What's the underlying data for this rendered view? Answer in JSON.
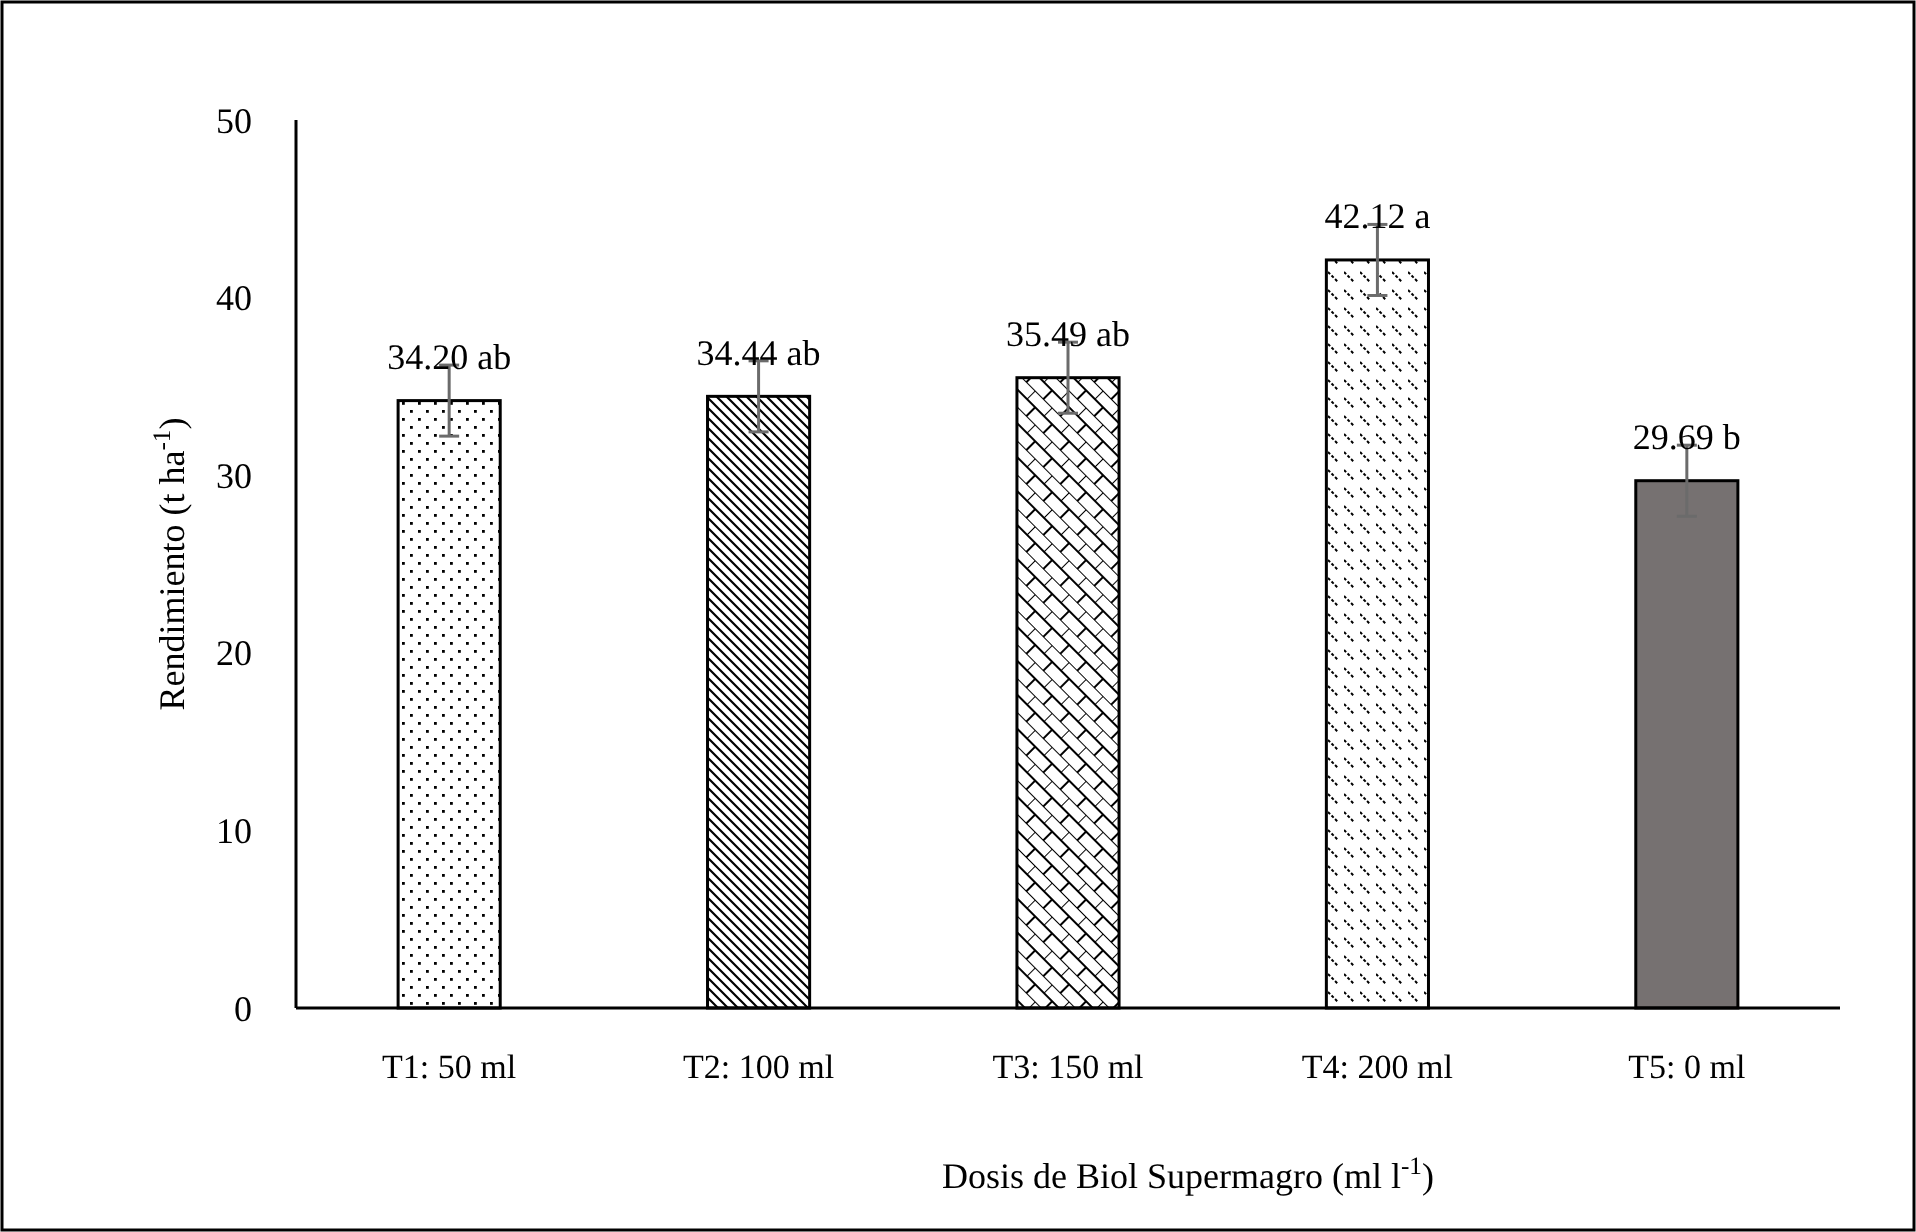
{
  "chart_data": {
    "type": "bar",
    "xlabel": "Dosis de Biol Supermagro (ml l$^{-1}$)",
    "ylabel": "Rendimiento (t ha$^{-1}$)",
    "categories": [
      "T1: 50 ml",
      "T2: 100 ml",
      "T3: 150 ml",
      "T4: 200 ml",
      "T5: 0 ml"
    ],
    "values": [
      34.2,
      34.44,
      35.49,
      42.12,
      29.69
    ],
    "colors": [
      "#000000",
      "#000000",
      "#000000",
      "#000000",
      "#767171"
    ],
    "errors": [
      2,
      2,
      2,
      2,
      2
    ],
    "value_labels": [
      "34.20 ab",
      "34.44 ab",
      "35.49 ab",
      "42.12 a",
      "29.69 b"
    ],
    "ylim": [
      0,
      50
    ],
    "yticks": [
      0,
      10,
      20,
      30,
      40,
      50
    ],
    "grid": false
  }
}
